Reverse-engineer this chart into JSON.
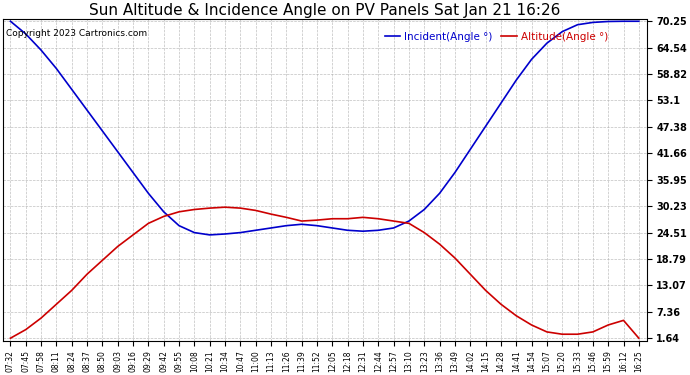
{
  "title": "Sun Altitude & Incidence Angle on PV Panels Sat Jan 21 16:26",
  "copyright": "Copyright 2023 Cartronics.com",
  "legend_incident": "Incident(Angle °)",
  "legend_altitude": "Altitude(Angle °)",
  "background_color": "#ffffff",
  "grid_color": "#b0b0b0",
  "title_fontsize": 11,
  "x_labels": [
    "07:32",
    "07:45",
    "07:58",
    "08:11",
    "08:24",
    "08:37",
    "08:50",
    "09:03",
    "09:16",
    "09:29",
    "09:42",
    "09:55",
    "10:08",
    "10:21",
    "10:34",
    "10:47",
    "11:00",
    "11:13",
    "11:26",
    "11:39",
    "11:52",
    "12:05",
    "12:18",
    "12:31",
    "12:44",
    "12:57",
    "13:10",
    "13:23",
    "13:36",
    "13:49",
    "14:02",
    "14:15",
    "14:28",
    "14:41",
    "14:54",
    "15:07",
    "15:20",
    "15:33",
    "15:46",
    "15:59",
    "16:12",
    "16:25"
  ],
  "yticks": [
    1.64,
    7.36,
    13.07,
    18.79,
    24.51,
    30.23,
    35.95,
    41.66,
    47.38,
    53.1,
    58.82,
    64.54,
    70.25
  ],
  "ymin": 1.64,
  "ymax": 70.25,
  "incident_values": [
    70.25,
    67.5,
    64.0,
    60.0,
    55.5,
    51.0,
    46.5,
    42.0,
    37.5,
    33.0,
    29.0,
    26.0,
    24.5,
    24.0,
    24.2,
    24.5,
    25.0,
    25.5,
    26.0,
    26.3,
    26.0,
    25.5,
    25.0,
    24.8,
    25.0,
    25.5,
    27.0,
    29.5,
    33.0,
    37.5,
    42.5,
    47.5,
    52.5,
    57.5,
    62.0,
    65.5,
    68.0,
    69.5,
    70.0,
    70.2,
    70.25,
    70.25
  ],
  "altitude_values": [
    1.64,
    3.5,
    6.0,
    9.0,
    12.0,
    15.5,
    18.5,
    21.5,
    24.0,
    26.5,
    28.0,
    29.0,
    29.5,
    29.8,
    30.0,
    29.8,
    29.3,
    28.5,
    27.8,
    27.0,
    27.2,
    27.5,
    27.5,
    27.8,
    27.5,
    27.0,
    26.5,
    24.5,
    22.0,
    19.0,
    15.5,
    12.0,
    9.0,
    6.5,
    4.5,
    3.0,
    2.5,
    2.5,
    3.0,
    4.5,
    5.5,
    1.64
  ],
  "line_width": 1.2,
  "incident_line_color": "#0000cc",
  "altitude_line_color": "#cc0000"
}
